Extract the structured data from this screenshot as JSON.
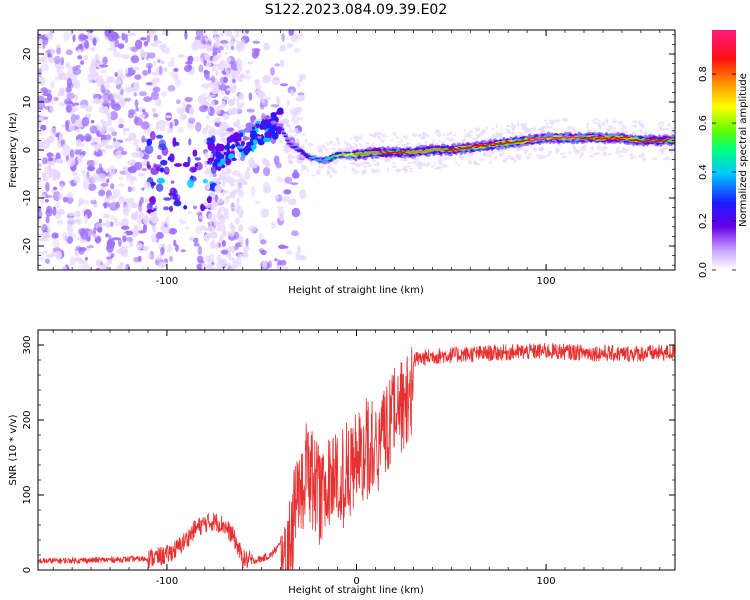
{
  "title": "S122.2023.084.09.39.E02",
  "chart_data": [
    {
      "type": "heatmap",
      "xlabel": "Height of straight line (km)",
      "ylabel": "Frequency (Hz)",
      "xlim": [
        -168,
        168
      ],
      "ylim": [
        -25,
        25
      ],
      "x_ticks": [
        -100,
        100
      ],
      "y_ticks": [
        -20,
        -10,
        0,
        10,
        20
      ],
      "colorbar": {
        "label": "Normalized spectral amplitude",
        "range": [
          0,
          0.98
        ],
        "ticks": [
          0.0,
          0.2,
          0.4,
          0.6,
          0.8
        ]
      },
      "ridge": {
        "description_x": [
          -40,
          -35,
          -30,
          -25,
          -20,
          -15,
          -10,
          0,
          10,
          20,
          30,
          40,
          50,
          60,
          70,
          80,
          90,
          100,
          110,
          120,
          130,
          140,
          150,
          160,
          168
        ],
        "frequency": [
          5,
          1,
          0,
          -1.5,
          -2,
          -2,
          -1,
          -1,
          -0.5,
          -0.5,
          -0.5,
          0,
          0,
          0.5,
          1,
          1.5,
          2,
          2.5,
          2.5,
          2.5,
          2.5,
          2.5,
          2,
          2,
          2
        ],
        "amplitude": [
          0.35,
          0.3,
          0.35,
          0.4,
          0.45,
          0.5,
          0.6,
          0.8,
          0.85,
          0.9,
          0.85,
          0.8,
          0.9,
          0.95,
          0.9,
          0.95,
          0.95,
          0.98,
          0.98,
          0.95,
          0.95,
          0.95,
          0.9,
          0.9,
          0.85
        ]
      },
      "colormap": [
        "#ffffff",
        "#e8d8ff",
        "#a070ff",
        "#6a00e8",
        "#2020ff",
        "#00c8ff",
        "#00ff80",
        "#80ff00",
        "#ffff00",
        "#ff8000",
        "#ff0000",
        "#ff1a80"
      ]
    },
    {
      "type": "line",
      "xlabel": "Height of straight line (km)",
      "ylabel": "SNR (10 * v/v)",
      "xlim": [
        -168,
        168
      ],
      "ylim": [
        0,
        320
      ],
      "x_ticks": [
        -100,
        0,
        100
      ],
      "y_ticks": [
        0,
        100,
        200,
        300
      ],
      "line_color": "#e83030",
      "envelope": {
        "x": [
          -168,
          -140,
          -110,
          -100,
          -95,
          -90,
          -85,
          -80,
          -75,
          -70,
          -65,
          -60,
          -55,
          -50,
          -45,
          -40,
          -35,
          -30,
          -25,
          -20,
          -15,
          -10,
          -5,
          0,
          5,
          10,
          15,
          20,
          25,
          30,
          40,
          60,
          80,
          100,
          120,
          140,
          168
        ],
        "y": [
          12,
          13,
          15,
          20,
          28,
          40,
          55,
          62,
          65,
          60,
          45,
          15,
          12,
          15,
          20,
          35,
          80,
          160,
          180,
          150,
          165,
          175,
          185,
          200,
          210,
          215,
          225,
          255,
          270,
          280,
          285,
          288,
          290,
          292,
          290,
          288,
          290
        ]
      }
    }
  ]
}
